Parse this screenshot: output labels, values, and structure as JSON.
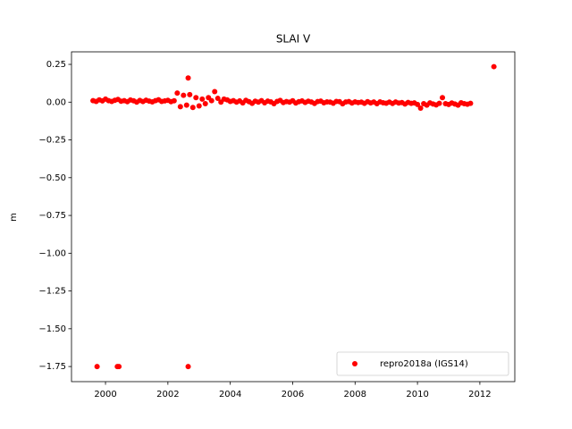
{
  "chart_data": {
    "type": "scatter",
    "title": "SLAI V",
    "y_label": "m",
    "legend_loc": "lower right",
    "xlim": [
      1998.91,
      2013.12
    ],
    "ylim": [
      -1.85,
      0.333
    ],
    "xticks": [
      2000,
      2002,
      2004,
      2006,
      2008,
      2010,
      2012
    ],
    "yticks": [
      {
        "value": 0.25,
        "label": "0.25"
      },
      {
        "value": 0,
        "label": "0.00"
      },
      {
        "value": -0.25,
        "label": "−0.25"
      },
      {
        "value": -0.5,
        "label": "−0.50"
      },
      {
        "value": -0.75,
        "label": "−0.75"
      },
      {
        "value": -1,
        "label": "−1.00"
      },
      {
        "value": -1.25,
        "label": "−1.25"
      },
      {
        "value": -1.5,
        "label": "−1.50"
      },
      {
        "value": -1.75,
        "label": "−1.75"
      }
    ],
    "series": [
      {
        "name": "repro2018a (IGS14)",
        "color": "#ff0000",
        "x": [
          1999.6,
          1999.7,
          1999.8,
          1999.9,
          2000.0,
          2000.1,
          2000.2,
          2000.3,
          2000.4,
          2000.5,
          2000.6,
          2000.7,
          2000.8,
          2000.9,
          2001.0,
          2001.1,
          2001.2,
          2001.3,
          2001.4,
          2001.5,
          2001.6,
          2001.7,
          2001.8,
          2001.9,
          2002.0,
          2002.1,
          2002.2,
          2002.3,
          2002.4,
          2002.5,
          2002.6,
          2002.7,
          2002.8,
          2002.9,
          2003.0,
          2003.1,
          2003.2,
          2003.3,
          2003.4,
          2003.5,
          2003.6,
          2003.7,
          2003.8,
          2003.9,
          2004.0,
          2004.1,
          2004.2,
          2004.3,
          2004.4,
          2004.5,
          2004.6,
          2004.7,
          2004.8,
          2004.9,
          2005.0,
          2005.1,
          2005.2,
          2005.3,
          2005.4,
          2005.5,
          2005.6,
          2005.7,
          2005.8,
          2005.9,
          2006.0,
          2006.1,
          2006.2,
          2006.3,
          2006.4,
          2006.5,
          2006.6,
          2006.7,
          2006.8,
          2006.9,
          2007.0,
          2007.1,
          2007.2,
          2007.3,
          2007.4,
          2007.5,
          2007.6,
          2007.7,
          2007.8,
          2007.9,
          2008.0,
          2008.1,
          2008.2,
          2008.3,
          2008.4,
          2008.5,
          2008.6,
          2008.7,
          2008.8,
          2008.9,
          2009.0,
          2009.1,
          2009.2,
          2009.3,
          2009.4,
          2009.5,
          2009.6,
          2009.7,
          2009.8,
          2009.9,
          2010.0,
          2010.1,
          2010.2,
          2010.3,
          2010.4,
          2010.5,
          2010.6,
          2010.7,
          2010.8,
          2010.9,
          2011.0,
          2011.1,
          2011.2,
          2011.3,
          2011.4,
          2011.5,
          2011.6,
          2011.7,
          1999.73,
          2000.38,
          2000.43,
          2002.65,
          2002.65,
          2012.45
        ],
        "values": [
          0.01,
          0.005,
          0.015,
          0.008,
          0.02,
          0.01,
          0.005,
          0.012,
          0.018,
          0.006,
          0.01,
          0.003,
          0.014,
          0.009,
          0.0,
          0.011,
          0.004,
          0.013,
          0.007,
          0.002,
          0.01,
          0.016,
          0.005,
          0.008,
          0.012,
          0.003,
          0.009,
          0.06,
          -0.03,
          0.045,
          -0.02,
          0.05,
          -0.035,
          0.03,
          -0.025,
          0.02,
          -0.01,
          0.03,
          0.01,
          0.07,
          0.025,
          0.0,
          0.02,
          0.015,
          0.005,
          0.01,
          0.0,
          0.008,
          -0.005,
          0.012,
          0.003,
          -0.008,
          0.006,
          0.0,
          0.01,
          -0.004,
          0.007,
          0.002,
          -0.01,
          0.005,
          0.011,
          -0.003,
          0.004,
          0.0,
          0.009,
          -0.006,
          0.003,
          0.008,
          -0.002,
          0.006,
          0.001,
          -0.009,
          0.004,
          0.007,
          -0.004,
          0.002,
          0.0,
          -0.007,
          0.005,
          0.003,
          -0.011,
          0.001,
          0.004,
          -0.006,
          0.002,
          -0.003,
          0.0,
          -0.008,
          0.003,
          -0.005,
          0.001,
          -0.01,
          0.002,
          -0.004,
          -0.007,
          0.0,
          -0.009,
          0.001,
          -0.006,
          -0.003,
          -0.012,
          -0.002,
          -0.008,
          -0.005,
          -0.015,
          -0.04,
          -0.01,
          -0.02,
          -0.005,
          -0.012,
          -0.018,
          -0.008,
          0.03,
          -0.01,
          -0.015,
          -0.006,
          -0.012,
          -0.02,
          -0.004,
          -0.01,
          -0.014,
          -0.008,
          -1.75,
          -1.75,
          -1.75,
          -1.75,
          0.16,
          0.235
        ]
      }
    ]
  }
}
